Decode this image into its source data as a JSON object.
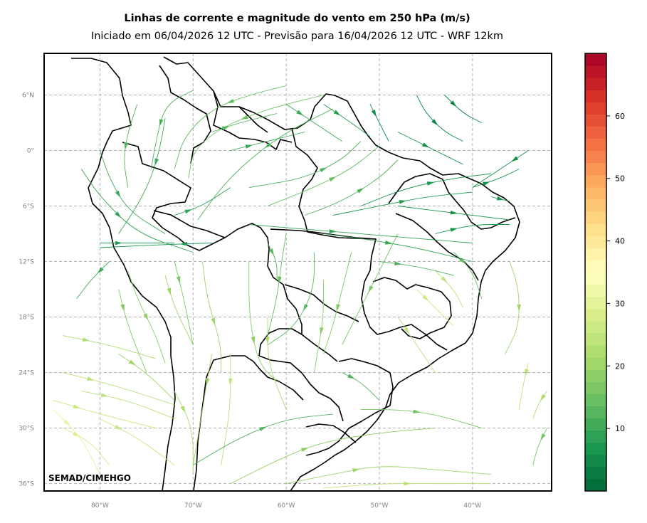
{
  "title": "Linhas de corrente e magnitude do vento em 250 hPa (m/s)",
  "subtitle": "Iniciado em 06/04/2026 12 UTC - Previsão para 16/04/2026 12 UTC - WRF 12km",
  "credit": "SEMAD/CIMEHGO",
  "map": {
    "lon_range": [
      -86,
      -31.5
    ],
    "lat_range": [
      -36.8,
      10.5
    ],
    "lat_ticks": [
      {
        "value": 6,
        "label": "6°N"
      },
      {
        "value": 0,
        "label": "0°"
      },
      {
        "value": -6,
        "label": "6°S"
      },
      {
        "value": -12,
        "label": "12°S"
      },
      {
        "value": -18,
        "label": "18°S"
      },
      {
        "value": -24,
        "label": "24°S"
      },
      {
        "value": -30,
        "label": "30°S"
      },
      {
        "value": -36,
        "label": "36°S"
      }
    ],
    "lon_ticks": [
      {
        "value": -80,
        "label": "80°W"
      },
      {
        "value": -70,
        "label": "70°W"
      },
      {
        "value": -60,
        "label": "60°W"
      },
      {
        "value": -50,
        "label": "50°W"
      },
      {
        "value": -40,
        "label": "40°W"
      }
    ],
    "gridlines": true,
    "gridline_color": "#b0b0b0"
  },
  "colorbar": {
    "min": 0,
    "max": 70,
    "ticks": [
      10,
      20,
      30,
      40,
      50,
      60
    ],
    "colormap": "RdYlGn_r",
    "stops": [
      "#006837",
      "#1a9850",
      "#66bd63",
      "#a6d96a",
      "#d9ef8b",
      "#ffffbf",
      "#fee08b",
      "#fdae61",
      "#f46d43",
      "#d73027",
      "#a50026"
    ]
  },
  "streamlines": [
    {
      "pts": [
        [
          -76,
          5
        ],
        [
          -77,
          2
        ],
        [
          -77.5,
          -1
        ],
        [
          -77,
          -4
        ]
      ],
      "speed": 12
    },
    {
      "pts": [
        [
          -73,
          3.5
        ],
        [
          -73.5,
          0.5
        ],
        [
          -74.5,
          -3
        ],
        [
          -76,
          -6
        ],
        [
          -78,
          -9
        ]
      ],
      "speed": 10
    },
    {
      "pts": [
        [
          -70,
          6.5
        ],
        [
          -73,
          5
        ],
        [
          -74,
          1
        ],
        [
          -74.5,
          -2
        ]
      ],
      "speed": 12
    },
    {
      "pts": [
        [
          -60,
          7
        ],
        [
          -64,
          6
        ],
        [
          -68,
          4.5
        ],
        [
          -71,
          1.5
        ],
        [
          -72,
          -2
        ]
      ],
      "speed": 14
    },
    {
      "pts": [
        [
          -56,
          6
        ],
        [
          -62,
          4.5
        ],
        [
          -67,
          2.5
        ],
        [
          -70,
          0
        ],
        [
          -70.5,
          -3
        ]
      ],
      "speed": 15
    },
    {
      "pts": [
        [
          -55,
          4.5
        ],
        [
          -60,
          2
        ],
        [
          -64,
          -1
        ],
        [
          -67,
          -4
        ],
        [
          -69.5,
          -7.5
        ]
      ],
      "speed": 12
    },
    {
      "pts": [
        [
          -80,
          0
        ],
        [
          -79,
          -3
        ],
        [
          -77,
          -6.5
        ],
        [
          -73,
          -9
        ]
      ],
      "speed": 10
    },
    {
      "pts": [
        [
          -82,
          -2
        ],
        [
          -80,
          -5
        ],
        [
          -76,
          -9
        ],
        [
          -70,
          -11
        ]
      ],
      "speed": 9
    },
    {
      "pts": [
        [
          -80,
          -10
        ],
        [
          -76,
          -10
        ],
        [
          -72,
          -10
        ]
      ],
      "speed": 8
    },
    {
      "pts": [
        [
          -68,
          -10
        ],
        [
          -74,
          -10.2
        ],
        [
          -80,
          -10.5
        ]
      ],
      "speed": 7
    },
    {
      "pts": [
        [
          -79,
          -12
        ],
        [
          -81,
          -14
        ],
        [
          -82.5,
          -16
        ]
      ],
      "speed": 10
    },
    {
      "pts": [
        [
          -77,
          -13
        ],
        [
          -76,
          -16
        ],
        [
          -74,
          -20
        ],
        [
          -73,
          -23
        ]
      ],
      "speed": 18
    },
    {
      "pts": [
        [
          -73,
          -13.5
        ],
        [
          -72,
          -17
        ],
        [
          -70,
          -21
        ]
      ],
      "speed": 20
    },
    {
      "pts": [
        [
          -78,
          -15
        ],
        [
          -77,
          -19
        ],
        [
          -75,
          -24
        ]
      ],
      "speed": 17
    },
    {
      "pts": [
        [
          -84,
          -20
        ],
        [
          -79,
          -21
        ],
        [
          -74,
          -22.5
        ]
      ],
      "speed": 22
    },
    {
      "pts": [
        [
          -84,
          -24
        ],
        [
          -78,
          -25.5
        ],
        [
          -72,
          -27.5
        ]
      ],
      "speed": 24
    },
    {
      "pts": [
        [
          -85,
          -27
        ],
        [
          -80,
          -28.5
        ],
        [
          -74,
          -30
        ]
      ],
      "speed": 26
    },
    {
      "pts": [
        [
          -84,
          -30
        ],
        [
          -81,
          -31.5
        ],
        [
          -79,
          -34
        ]
      ],
      "speed": 28
    },
    {
      "pts": [
        [
          -85,
          -28
        ],
        [
          -82,
          -31
        ],
        [
          -80,
          -35
        ]
      ],
      "speed": 30
    },
    {
      "pts": [
        [
          -80,
          -29
        ],
        [
          -76,
          -31
        ],
        [
          -72,
          -34
        ]
      ],
      "speed": 25
    },
    {
      "pts": [
        [
          -72,
          -26
        ],
        [
          -70,
          -30
        ],
        [
          -70,
          -35
        ]
      ],
      "speed": 22
    },
    {
      "pts": [
        [
          -66,
          -22
        ],
        [
          -66,
          -28
        ],
        [
          -67,
          -34
        ]
      ],
      "speed": 24
    },
    {
      "pts": [
        [
          -68,
          -22
        ],
        [
          -69,
          -28
        ],
        [
          -70,
          -34
        ]
      ],
      "speed": 20
    },
    {
      "pts": [
        [
          -62,
          -18
        ],
        [
          -62,
          -23
        ],
        [
          -60,
          -28
        ]
      ],
      "speed": 22
    },
    {
      "pts": [
        [
          -64,
          -12
        ],
        [
          -64,
          -18
        ],
        [
          -63,
          -23
        ],
        [
          -61,
          -25
        ]
      ],
      "speed": 18
    },
    {
      "pts": [
        [
          -69,
          -12
        ],
        [
          -68.5,
          -16
        ],
        [
          -67,
          -21
        ],
        [
          -67,
          -24
        ]
      ],
      "speed": 20
    },
    {
      "pts": [
        [
          -72,
          -12
        ],
        [
          -71,
          -16
        ],
        [
          -70,
          -21
        ]
      ],
      "speed": 16
    },
    {
      "pts": [
        [
          -60,
          -9
        ],
        [
          -60.5,
          -12
        ],
        [
          -61,
          -16
        ],
        [
          -62,
          -20
        ]
      ],
      "speed": 14
    },
    {
      "pts": [
        [
          -57,
          -11
        ],
        [
          -57,
          -15
        ],
        [
          -59,
          -19
        ],
        [
          -62,
          -21
        ]
      ],
      "speed": 13
    },
    {
      "pts": [
        [
          -56,
          -14
        ],
        [
          -56,
          -18
        ],
        [
          -56.5,
          -21
        ],
        [
          -57,
          -24
        ]
      ],
      "speed": 18
    },
    {
      "pts": [
        [
          -53,
          -11
        ],
        [
          -54,
          -15
        ],
        [
          -55,
          -19
        ],
        [
          -56,
          -22
        ]
      ],
      "speed": 17
    },
    {
      "pts": [
        [
          -48,
          -9
        ],
        [
          -50,
          -13
        ],
        [
          -52,
          -17
        ],
        [
          -54,
          -21
        ]
      ],
      "speed": 16
    },
    {
      "pts": [
        [
          -48,
          -18
        ],
        [
          -46,
          -21
        ],
        [
          -44,
          -24
        ]
      ],
      "speed": 24
    },
    {
      "pts": [
        [
          -46,
          -15
        ],
        [
          -44,
          -17
        ],
        [
          -42,
          -19
        ]
      ],
      "speed": 26
    },
    {
      "pts": [
        [
          -44,
          -13
        ],
        [
          -42,
          -15
        ],
        [
          -41,
          -17
        ]
      ],
      "speed": 24
    },
    {
      "pts": [
        [
          -42,
          -11
        ],
        [
          -40,
          -13
        ],
        [
          -39,
          -16
        ]
      ],
      "speed": 14
    },
    {
      "pts": [
        [
          -36,
          -12
        ],
        [
          -35,
          -15
        ],
        [
          -35,
          -19
        ],
        [
          -36.5,
          -22
        ]
      ],
      "speed": 20
    },
    {
      "pts": [
        [
          -34,
          -23
        ],
        [
          -34.5,
          -25
        ],
        [
          -35,
          -28
        ]
      ],
      "speed": 24
    },
    {
      "pts": [
        [
          -32,
          -26
        ],
        [
          -33,
          -27.5
        ],
        [
          -33.5,
          -29
        ]
      ],
      "speed": 22
    },
    {
      "pts": [
        [
          -32,
          -30
        ],
        [
          -33,
          -32
        ],
        [
          -33.5,
          -34
        ]
      ],
      "speed": 16
    },
    {
      "pts": [
        [
          -70,
          -34
        ],
        [
          -65,
          -31
        ],
        [
          -60,
          -29
        ],
        [
          -55,
          -28.5
        ]
      ],
      "speed": 12
    },
    {
      "pts": [
        [
          -66,
          -36
        ],
        [
          -60,
          -33
        ],
        [
          -56,
          -31.5
        ],
        [
          -50,
          -30.5
        ],
        [
          -44,
          -30
        ]
      ],
      "speed": 18
    },
    {
      "pts": [
        [
          -60,
          -36
        ],
        [
          -55,
          -35
        ],
        [
          -50,
          -34
        ],
        [
          -44,
          -34.5
        ],
        [
          -38,
          -35
        ]
      ],
      "speed": 20
    },
    {
      "pts": [
        [
          -56,
          -36.5
        ],
        [
          -50,
          -36
        ],
        [
          -44,
          -36
        ],
        [
          -38,
          -36
        ]
      ],
      "speed": 24
    },
    {
      "pts": [
        [
          -52,
          -28
        ],
        [
          -48,
          -28
        ],
        [
          -44,
          -28.5
        ],
        [
          -39,
          -30
        ]
      ],
      "speed": 16
    },
    {
      "pts": [
        [
          -54,
          -24
        ],
        [
          -52,
          -25
        ],
        [
          -50,
          -27
        ]
      ],
      "speed": 12
    },
    {
      "pts": [
        [
          -64,
          -8
        ],
        [
          -58,
          -8.5
        ],
        [
          -52,
          -9
        ],
        [
          -46,
          -9.5
        ],
        [
          -40,
          -10
        ]
      ],
      "speed": 9
    },
    {
      "pts": [
        [
          -56,
          -9
        ],
        [
          -52,
          -9.5
        ],
        [
          -46,
          -10.5
        ],
        [
          -40,
          -12
        ]
      ],
      "speed": 10
    },
    {
      "pts": [
        [
          -50,
          -12
        ],
        [
          -46,
          -12.5
        ],
        [
          -42,
          -13.5
        ]
      ],
      "speed": 12
    },
    {
      "pts": [
        [
          -64,
          -4
        ],
        [
          -58,
          -3
        ],
        [
          -54,
          -1
        ],
        [
          -52,
          1
        ]
      ],
      "speed": 12
    },
    {
      "pts": [
        [
          -62,
          -6
        ],
        [
          -57,
          -4
        ],
        [
          -53,
          -2
        ],
        [
          -50,
          0.5
        ]
      ],
      "speed": 14
    },
    {
      "pts": [
        [
          -58,
          -7
        ],
        [
          -54,
          -5.5
        ],
        [
          -50,
          -3
        ],
        [
          -48,
          -1
        ]
      ],
      "speed": 12
    },
    {
      "pts": [
        [
          -55,
          -7
        ],
        [
          -50,
          -6
        ],
        [
          -45,
          -5
        ],
        [
          -40,
          -4.5
        ]
      ],
      "speed": 8
    },
    {
      "pts": [
        [
          -52,
          -6
        ],
        [
          -47,
          -4
        ],
        [
          -42,
          -3
        ],
        [
          -38,
          -2.5
        ]
      ],
      "speed": 7
    },
    {
      "pts": [
        [
          -48,
          -6
        ],
        [
          -44,
          -6.5
        ],
        [
          -40,
          -7
        ],
        [
          -36,
          -7.5
        ]
      ],
      "speed": 6
    },
    {
      "pts": [
        [
          -44,
          -9
        ],
        [
          -40,
          -8
        ],
        [
          -36,
          -8
        ]
      ],
      "speed": 7
    },
    {
      "pts": [
        [
          -46,
          6
        ],
        [
          -45,
          4
        ],
        [
          -43,
          2
        ],
        [
          -41,
          1
        ]
      ],
      "speed": 5
    },
    {
      "pts": [
        [
          -43,
          6
        ],
        [
          -41,
          4
        ],
        [
          -39,
          3
        ]
      ],
      "speed": 4
    },
    {
      "pts": [
        [
          -48,
          2
        ],
        [
          -46,
          1
        ],
        [
          -44,
          0
        ],
        [
          -41,
          -1.5
        ]
      ],
      "speed": 6
    },
    {
      "pts": [
        [
          -51,
          5
        ],
        [
          -50,
          3
        ],
        [
          -49,
          1
        ]
      ],
      "speed": 6
    },
    {
      "pts": [
        [
          -56,
          5
        ],
        [
          -53,
          3
        ],
        [
          -51,
          1.5
        ]
      ],
      "speed": 8
    },
    {
      "pts": [
        [
          -60,
          5
        ],
        [
          -57,
          3
        ],
        [
          -54,
          1
        ]
      ],
      "speed": 10
    },
    {
      "pts": [
        [
          -40,
          -4
        ],
        [
          -37,
          -3
        ],
        [
          -35,
          -2
        ]
      ],
      "speed": 6
    },
    {
      "pts": [
        [
          -34,
          0
        ],
        [
          -37,
          -2
        ],
        [
          -40,
          -4
        ]
      ],
      "speed": 6
    },
    {
      "pts": [
        [
          -38,
          -5
        ],
        [
          -36,
          -5.5
        ]
      ],
      "speed": 7
    },
    {
      "pts": [
        [
          -66,
          0
        ],
        [
          -62,
          1
        ],
        [
          -58,
          2
        ]
      ],
      "speed": 10
    },
    {
      "pts": [
        [
          -68,
          2
        ],
        [
          -65,
          3
        ],
        [
          -61,
          4
        ]
      ],
      "speed": 12
    },
    {
      "pts": [
        [
          -72,
          -7
        ],
        [
          -69,
          -6
        ],
        [
          -66,
          -4
        ]
      ],
      "speed": 9
    },
    {
      "pts": [
        [
          -62,
          -10
        ],
        [
          -61,
          -12
        ],
        [
          -61,
          -14
        ]
      ],
      "speed": 13
    },
    {
      "pts": [
        [
          -78,
          -22
        ],
        [
          -75,
          -24
        ],
        [
          -72,
          -27
        ]
      ],
      "speed": 20
    },
    {
      "pts": [
        [
          -82,
          -26
        ],
        [
          -77,
          -27
        ],
        [
          -72,
          -29
        ]
      ],
      "speed": 24
    }
  ]
}
